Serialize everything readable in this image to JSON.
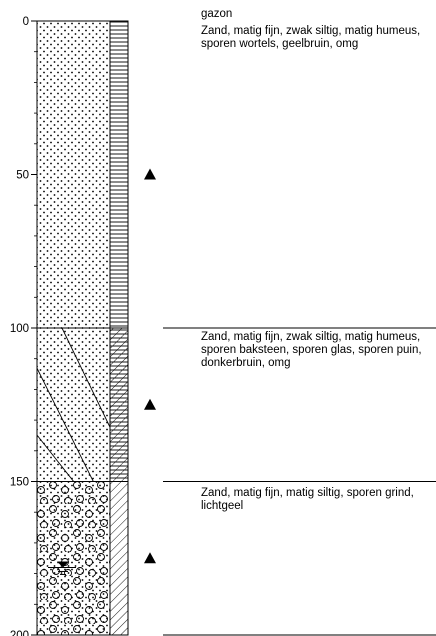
{
  "depth_axis": {
    "min": 0,
    "max": 200,
    "ticks": [
      0,
      50,
      100,
      150,
      200
    ]
  },
  "colors": {
    "line": "#000000",
    "background": "#ffffff"
  },
  "layers": [
    {
      "top": 0,
      "bottom": 100,
      "pattern": "sand-dots",
      "descriptions": [
        "gazon",
        "Zand, matig fijn, zwak siltig, matig humeus, sporen wortels, geelbruin, omg"
      ]
    },
    {
      "top": 100,
      "bottom": 150,
      "pattern": "sand-dots-hatched",
      "descriptions": [
        "Zand, matig fijn, zwak siltig, matig humeus, sporen baksteen, sporen glas, sporen puin, donkerbruin, omg"
      ]
    },
    {
      "top": 150,
      "bottom": 200,
      "pattern": "sand-gravel",
      "descriptions": [
        "Zand, matig fijn, matig siltig, sporen grind, lichtgeel"
      ]
    }
  ],
  "sample_depths": [
    50,
    125,
    175
  ],
  "groundwater_depth": 178,
  "side_column": [
    {
      "top": 0,
      "bottom": 100,
      "pattern": "horizontal"
    },
    {
      "top": 100,
      "bottom": 150,
      "pattern": "horizontal-diagonal"
    },
    {
      "top": 150,
      "bottom": 200,
      "pattern": "diagonal"
    }
  ],
  "icons": {
    "sample": "triangle-icon",
    "groundwater": "groundwater-level-icon"
  }
}
